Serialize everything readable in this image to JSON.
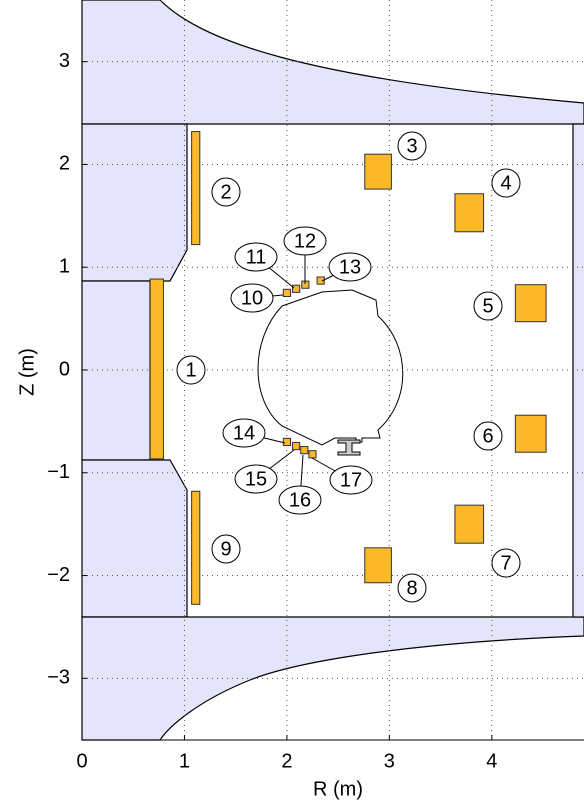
{
  "chart_data": {
    "type": "coil_layout",
    "xlabel": "R (m)",
    "ylabel": "Z (m)",
    "xlim": [
      0,
      4.9
    ],
    "ylim": [
      -3.6,
      3.6
    ],
    "xticks": [
      0,
      1,
      2,
      3,
      4
    ],
    "yticks": [
      {
        "value": -3,
        "label": "−3"
      },
      {
        "value": -2,
        "label": "−2"
      },
      {
        "value": -1,
        "label": "−1"
      },
      0,
      1,
      2,
      3
    ],
    "grid": true,
    "color": "#fbb829",
    "coils": [
      {
        "label": "1",
        "r": 0.73,
        "z": 0.01,
        "dr": 0.13,
        "dz": 1.75
      },
      {
        "label": "2",
        "r": 1.11,
        "z": 1.77,
        "dr": 0.08,
        "dz": 1.1
      },
      {
        "label": "3",
        "r": 2.89,
        "z": 1.93,
        "dr": 0.26,
        "dz": 0.34
      },
      {
        "label": "4",
        "r": 3.78,
        "z": 1.53,
        "dr": 0.28,
        "dz": 0.37
      },
      {
        "label": "5",
        "r": 4.38,
        "z": 0.65,
        "dr": 0.3,
        "dz": 0.36
      },
      {
        "label": "6",
        "r": 4.38,
        "z": -0.62,
        "dr": 0.3,
        "dz": 0.36
      },
      {
        "label": "7",
        "r": 3.78,
        "z": -1.5,
        "dr": 0.28,
        "dz": 0.37
      },
      {
        "label": "8",
        "r": 2.89,
        "z": -1.9,
        "dr": 0.26,
        "dz": 0.34
      },
      {
        "label": "9",
        "r": 1.11,
        "z": -1.73,
        "dr": 0.08,
        "dz": 1.1
      },
      {
        "label": "10",
        "r": 2.0,
        "z": 0.75,
        "dr": 0.07,
        "dz": 0.07
      },
      {
        "label": "11",
        "r": 2.09,
        "z": 0.79,
        "dr": 0.07,
        "dz": 0.07
      },
      {
        "label": "12",
        "r": 2.18,
        "z": 0.83,
        "dr": 0.07,
        "dz": 0.07
      },
      {
        "label": "13",
        "r": 2.33,
        "z": 0.87,
        "dr": 0.07,
        "dz": 0.07
      },
      {
        "label": "14",
        "r": 2.0,
        "z": -0.7,
        "dr": 0.07,
        "dz": 0.07
      },
      {
        "label": "15",
        "r": 2.09,
        "z": -0.74,
        "dr": 0.07,
        "dz": 0.07
      },
      {
        "label": "16",
        "r": 2.17,
        "z": -0.78,
        "dr": 0.07,
        "dz": 0.07
      },
      {
        "label": "17",
        "r": 2.25,
        "z": -0.82,
        "dr": 0.07,
        "dz": 0.07
      }
    ]
  }
}
